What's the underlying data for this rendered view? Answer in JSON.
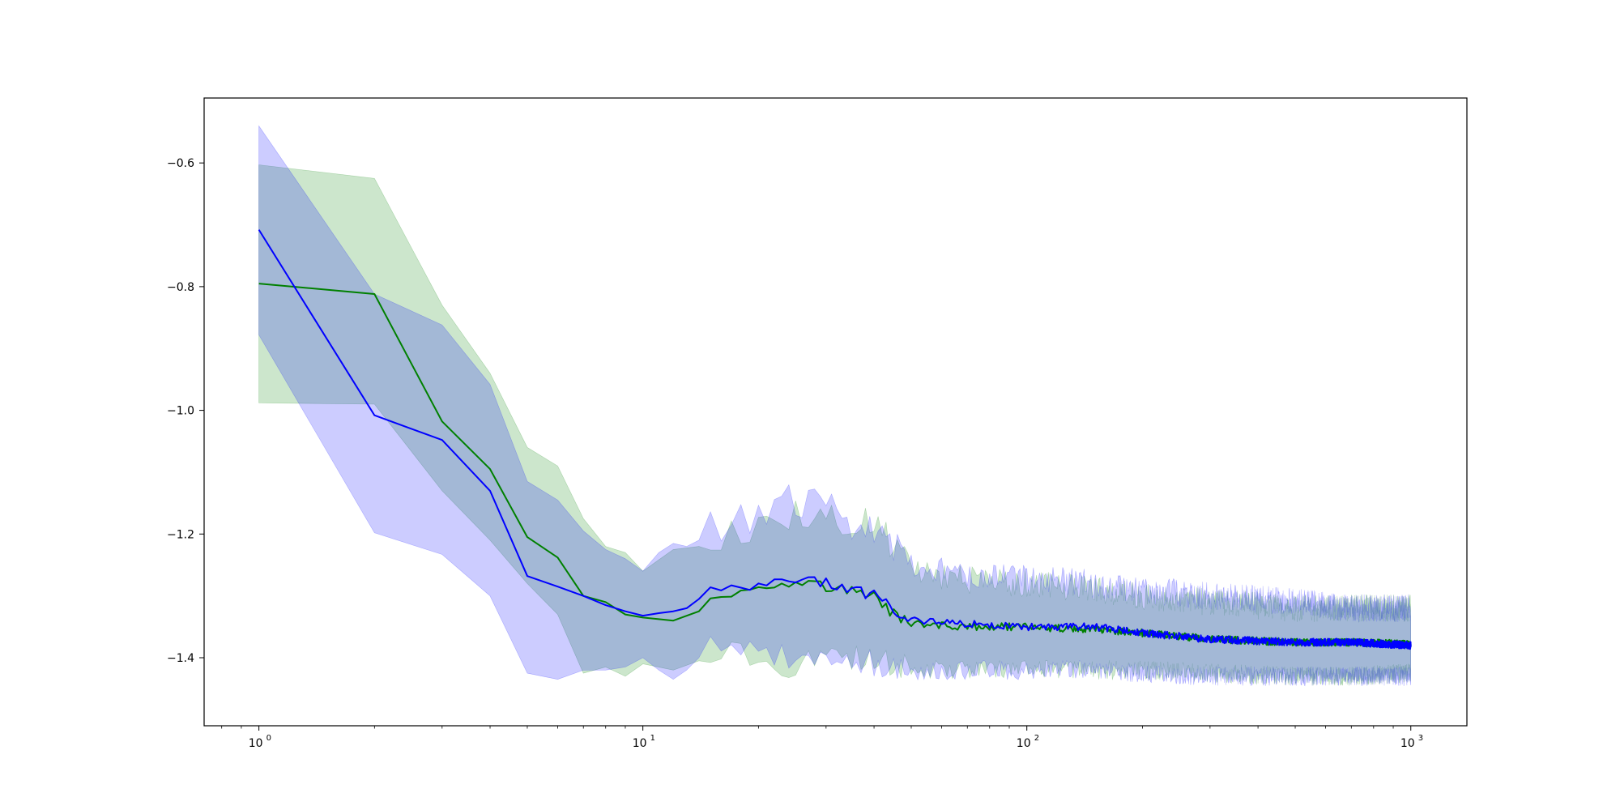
{
  "chart_data": {
    "type": "line",
    "title": "",
    "xlabel": "",
    "ylabel": "",
    "x_scale": "log",
    "xlim": [
      0.72,
      1400
    ],
    "ylim": [
      -1.51,
      -0.495
    ],
    "x_tick_labels": [
      {
        "value": 1,
        "base": "10",
        "exp": "0"
      },
      {
        "value": 10,
        "base": "10",
        "exp": "1"
      },
      {
        "value": 100,
        "base": "10",
        "exp": "2"
      },
      {
        "value": 1000,
        "base": "10",
        "exp": "3"
      }
    ],
    "y_ticks": [
      -0.6,
      -0.8,
      -1.0,
      -1.2,
      -1.4
    ],
    "y_tick_labels": [
      "−0.6",
      "−0.8",
      "−1.0",
      "−1.2",
      "−1.4"
    ],
    "grid": false,
    "legend": "none",
    "series": [
      {
        "color": "#008000",
        "band_color": "#008000",
        "band_opacity": 0.2,
        "x": [
          1,
          2,
          3,
          4,
          5,
          6,
          7,
          8,
          9,
          10,
          12,
          14,
          15,
          17,
          18,
          20,
          22,
          25,
          30,
          40,
          45,
          50,
          70,
          100,
          150,
          200,
          300,
          500,
          700,
          1000
        ],
        "values": [
          -0.795,
          -0.812,
          -1.018,
          -1.095,
          -1.205,
          -1.238,
          -1.3,
          -1.31,
          -1.33,
          -1.335,
          -1.34,
          -1.325,
          -1.3,
          -1.295,
          -1.285,
          -1.29,
          -1.28,
          -1.275,
          -1.285,
          -1.3,
          -1.33,
          -1.345,
          -1.35,
          -1.35,
          -1.355,
          -1.36,
          -1.37,
          -1.375,
          -1.375,
          -1.378
        ],
        "lower": [
          -0.988,
          -0.99,
          -1.13,
          -1.21,
          -1.28,
          -1.33,
          -1.425,
          -1.415,
          -1.43,
          -1.41,
          -1.42,
          -1.405,
          -1.39,
          -1.375,
          -1.39,
          -1.41,
          -1.415,
          -1.41,
          -1.4,
          -1.4,
          -1.41,
          -1.42,
          -1.42,
          -1.42,
          -1.42,
          -1.42,
          -1.425,
          -1.43,
          -1.43,
          -1.425
        ],
        "upper": [
          -0.603,
          -0.625,
          -0.83,
          -0.94,
          -1.06,
          -1.09,
          -1.175,
          -1.22,
          -1.23,
          -1.26,
          -1.225,
          -1.22,
          -1.21,
          -1.2,
          -1.195,
          -1.19,
          -1.16,
          -1.165,
          -1.17,
          -1.18,
          -1.225,
          -1.26,
          -1.275,
          -1.28,
          -1.29,
          -1.3,
          -1.31,
          -1.32,
          -1.32,
          -1.32
        ],
        "noise_start_x": 15
      },
      {
        "color": "#0000ff",
        "band_color": "#0000ff",
        "band_opacity": 0.2,
        "x": [
          1,
          2,
          3,
          4,
          5,
          6,
          7,
          8,
          9,
          10,
          11,
          12,
          13,
          14,
          15,
          17,
          18,
          20,
          22,
          25,
          30,
          40,
          45,
          50,
          70,
          100,
          150,
          200,
          300,
          500,
          700,
          1000
        ],
        "values": [
          -0.708,
          -1.008,
          -1.048,
          -1.13,
          -1.268,
          -1.285,
          -1.3,
          -1.315,
          -1.325,
          -1.332,
          -1.328,
          -1.325,
          -1.32,
          -1.305,
          -1.283,
          -1.285,
          -1.29,
          -1.285,
          -1.28,
          -1.275,
          -1.28,
          -1.3,
          -1.32,
          -1.34,
          -1.345,
          -1.35,
          -1.35,
          -1.36,
          -1.37,
          -1.375,
          -1.375,
          -1.38
        ],
        "lower": [
          -0.878,
          -1.198,
          -1.233,
          -1.3,
          -1.425,
          -1.435,
          -1.42,
          -1.42,
          -1.415,
          -1.4,
          -1.42,
          -1.435,
          -1.42,
          -1.4,
          -1.385,
          -1.38,
          -1.385,
          -1.395,
          -1.4,
          -1.4,
          -1.4,
          -1.41,
          -1.42,
          -1.42,
          -1.42,
          -1.42,
          -1.42,
          -1.425,
          -1.43,
          -1.43,
          -1.43,
          -1.43
        ],
        "upper": [
          -0.54,
          -0.812,
          -0.862,
          -0.958,
          -1.115,
          -1.145,
          -1.195,
          -1.225,
          -1.24,
          -1.26,
          -1.23,
          -1.215,
          -1.22,
          -1.21,
          -1.19,
          -1.185,
          -1.175,
          -1.17,
          -1.15,
          -1.14,
          -1.16,
          -1.2,
          -1.215,
          -1.25,
          -1.265,
          -1.27,
          -1.28,
          -1.29,
          -1.3,
          -1.31,
          -1.32,
          -1.32
        ],
        "noise_start_x": 15
      }
    ]
  }
}
